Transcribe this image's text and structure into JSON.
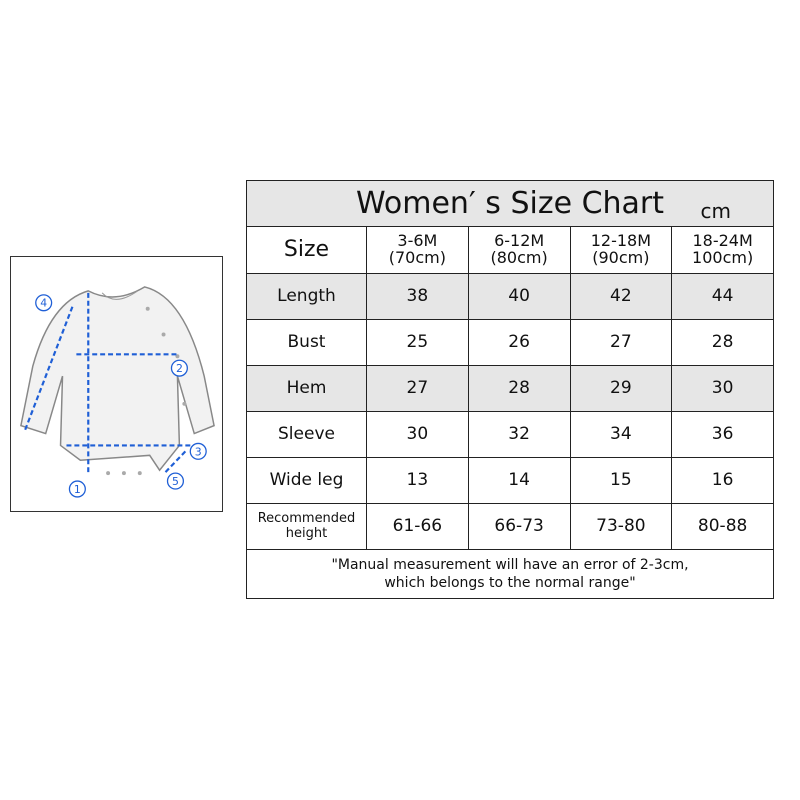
{
  "illustration": {
    "markers": [
      "1",
      "2",
      "3",
      "4",
      "5"
    ],
    "line_color": "#1f5fd6"
  },
  "chart_data": {
    "type": "table",
    "title": "Women′ s Size Chart",
    "unit": "cm",
    "header_label": "Size",
    "columns": [
      {
        "size": "3-6M",
        "height": "(70cm)"
      },
      {
        "size": "6-12M",
        "height": "(80cm)"
      },
      {
        "size": "12-18M",
        "height": "(90cm)"
      },
      {
        "size": "18-24M",
        "height": "100cm)"
      }
    ],
    "rows": [
      {
        "label": "Length",
        "values": [
          "38",
          "40",
          "42",
          "44"
        ],
        "shaded": true
      },
      {
        "label": "Bust",
        "values": [
          "25",
          "26",
          "27",
          "28"
        ],
        "shaded": false
      },
      {
        "label": "Hem",
        "values": [
          "27",
          "28",
          "29",
          "30"
        ],
        "shaded": true
      },
      {
        "label": "Sleeve",
        "values": [
          "30",
          "32",
          "34",
          "36"
        ],
        "shaded": false
      },
      {
        "label": "Wide leg",
        "values": [
          "13",
          "14",
          "15",
          "16"
        ],
        "shaded": false
      },
      {
        "label": "Recommended height",
        "values": [
          "61-66",
          "66-73",
          "73-80",
          "80-88"
        ],
        "shaded": false
      }
    ],
    "note_line1": "\"Manual measurement will have an error of 2-3cm,",
    "note_line2": "which belongs to the normal range\"",
    "shade_color": "#e6e6e6"
  }
}
